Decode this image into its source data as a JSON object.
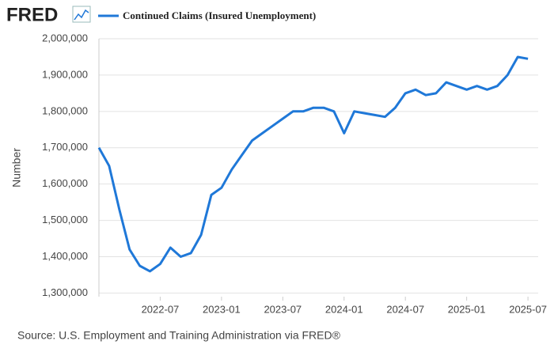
{
  "brand": "FRED",
  "chart_data": {
    "type": "line",
    "ylabel": "Number",
    "source": "Source: U.S. Employment and Training Administration via FRED®",
    "x": [
      "2022-01",
      "2022-02",
      "2022-03",
      "2022-04",
      "2022-05",
      "2022-06",
      "2022-07",
      "2022-08",
      "2022-09",
      "2022-10",
      "2022-11",
      "2022-12",
      "2023-01",
      "2023-02",
      "2023-03",
      "2023-04",
      "2023-05",
      "2023-06",
      "2023-07",
      "2023-08",
      "2023-09",
      "2023-10",
      "2023-11",
      "2023-12",
      "2024-01",
      "2024-02",
      "2024-03",
      "2024-04",
      "2024-05",
      "2024-06",
      "2024-07",
      "2024-08",
      "2024-09",
      "2024-10",
      "2024-11",
      "2024-12",
      "2025-01",
      "2025-02",
      "2025-03",
      "2025-04",
      "2025-05",
      "2025-06",
      "2025-07"
    ],
    "series": [
      {
        "name": "Continued Claims (Insured Unemployment)",
        "color": "#1f78d8",
        "values": [
          1700000,
          1650000,
          1530000,
          1420000,
          1375000,
          1360000,
          1380000,
          1425000,
          1400000,
          1410000,
          1460000,
          1570000,
          1590000,
          1640000,
          1680000,
          1720000,
          1740000,
          1760000,
          1780000,
          1800000,
          1800000,
          1810000,
          1810000,
          1800000,
          1740000,
          1800000,
          1795000,
          1790000,
          1785000,
          1810000,
          1850000,
          1860000,
          1845000,
          1850000,
          1880000,
          1870000,
          1860000,
          1870000,
          1860000,
          1870000,
          1900000,
          1950000,
          1945000
        ]
      }
    ],
    "xlim": [
      "2022-01",
      "2025-08"
    ],
    "xticks": [
      "2022-07",
      "2023-01",
      "2023-07",
      "2024-01",
      "2024-07",
      "2025-01",
      "2025-07"
    ],
    "ylim": [
      1290000,
      2000000
    ],
    "yticks": [
      {
        "value": 1300000,
        "label": "1,300,000"
      },
      {
        "value": 1400000,
        "label": "1,400,000"
      },
      {
        "value": 1500000,
        "label": "1,500,000"
      },
      {
        "value": 1600000,
        "label": "1,600,000"
      },
      {
        "value": 1700000,
        "label": "1,700,000"
      },
      {
        "value": 1800000,
        "label": "1,800,000"
      },
      {
        "value": 1900000,
        "label": "1,900,000"
      },
      {
        "value": 2000000,
        "label": "2,000,000"
      }
    ],
    "grid": true
  }
}
